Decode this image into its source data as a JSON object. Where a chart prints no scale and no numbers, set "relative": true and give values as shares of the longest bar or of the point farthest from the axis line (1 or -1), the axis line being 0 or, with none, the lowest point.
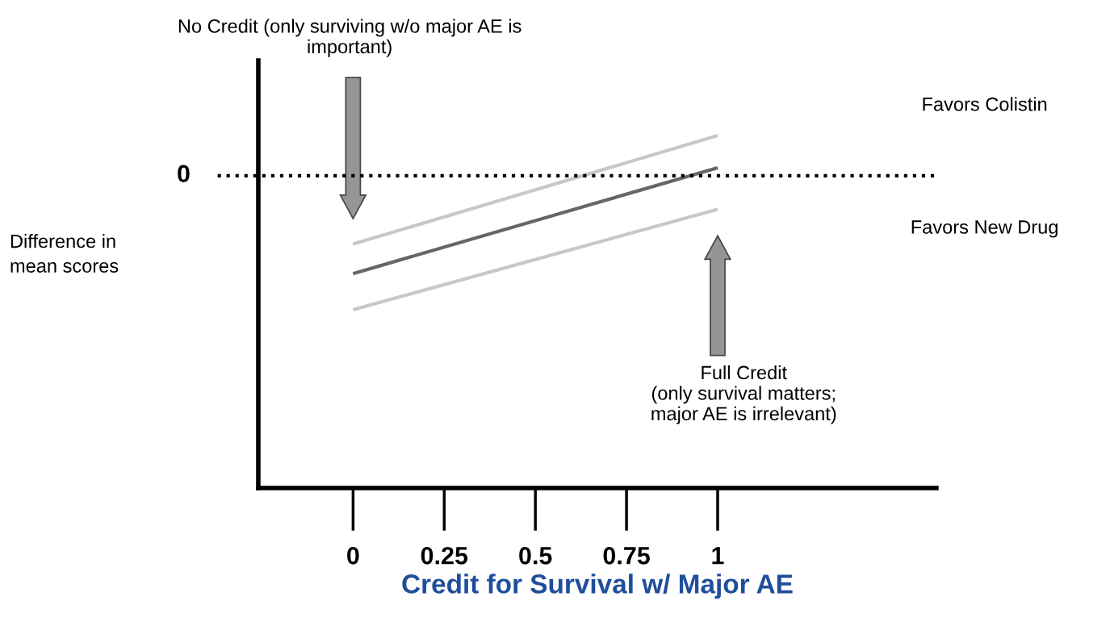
{
  "chart_data": {
    "type": "line",
    "relative": true,
    "xlabel": "Credit for Survival w/ Major AE",
    "x": [
      0,
      1
    ],
    "xlim": [
      -0.26,
      1.6
    ],
    "xticks": [
      0,
      0.25,
      0.5,
      0.75,
      1
    ],
    "series": [
      {
        "color": "#c8c8c8",
        "values": [
          -0.51,
          0.3
        ]
      },
      {
        "color": "#666666",
        "values": [
          -0.73,
          0.06
        ]
      },
      {
        "color": "#c8c8c8",
        "values": [
          -1,
          -0.25
        ]
      }
    ],
    "ref_lines": [
      {
        "axis": "y",
        "value": 0,
        "label": "0",
        "color": "#000000",
        "line_style": "dotted"
      }
    ],
    "annotations": [
      "No Credit (only surviving w/o major AE is\nimportant)",
      "Full Credit\n(only survival matters;\nmajor AE is irrelevant)",
      "Favors Colistin",
      "Favors New Drug",
      "Difference in\nmean scores"
    ],
    "grid": false,
    "legend": false,
    "marker": "none",
    "line_style": "solid"
  }
}
